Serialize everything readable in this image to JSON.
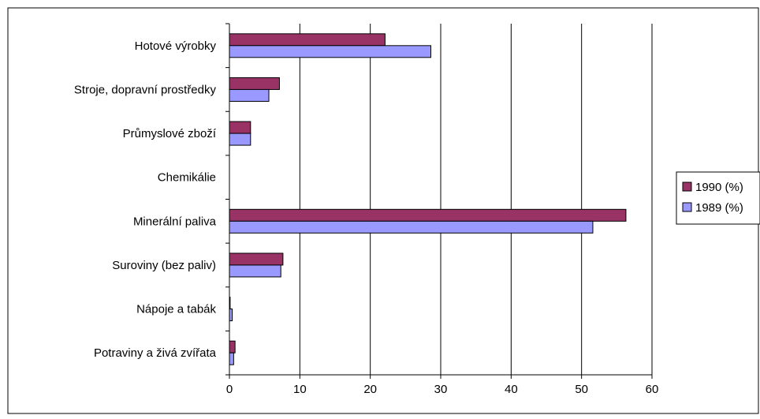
{
  "chart_data": {
    "type": "bar",
    "orientation": "horizontal",
    "title": "",
    "xlabel": "",
    "ylabel": "",
    "categories": [
      "Hotové výrobky",
      "Stroje, dopravní prostředky",
      "Průmyslové zboží",
      "Chemikálie",
      "Minerální paliva",
      "Suroviny (bez paliv)",
      "Nápoje a tabák",
      "Potraviny a živá zvířata"
    ],
    "series": [
      {
        "name": "1990 (%)",
        "color": "#993366",
        "values": [
          22.1,
          7.1,
          3.0,
          0,
          56.3,
          7.6,
          0.1,
          0.8
        ]
      },
      {
        "name": "1989 (%)",
        "color": "#9999ff",
        "values": [
          28.6,
          5.6,
          3.0,
          0,
          51.6,
          7.3,
          0.4,
          0.6
        ]
      }
    ],
    "xlim": [
      0,
      60
    ],
    "xticks": [
      "0",
      "10",
      "20",
      "30",
      "40",
      "50",
      "60"
    ],
    "grid": "vertical",
    "legend": "right"
  }
}
